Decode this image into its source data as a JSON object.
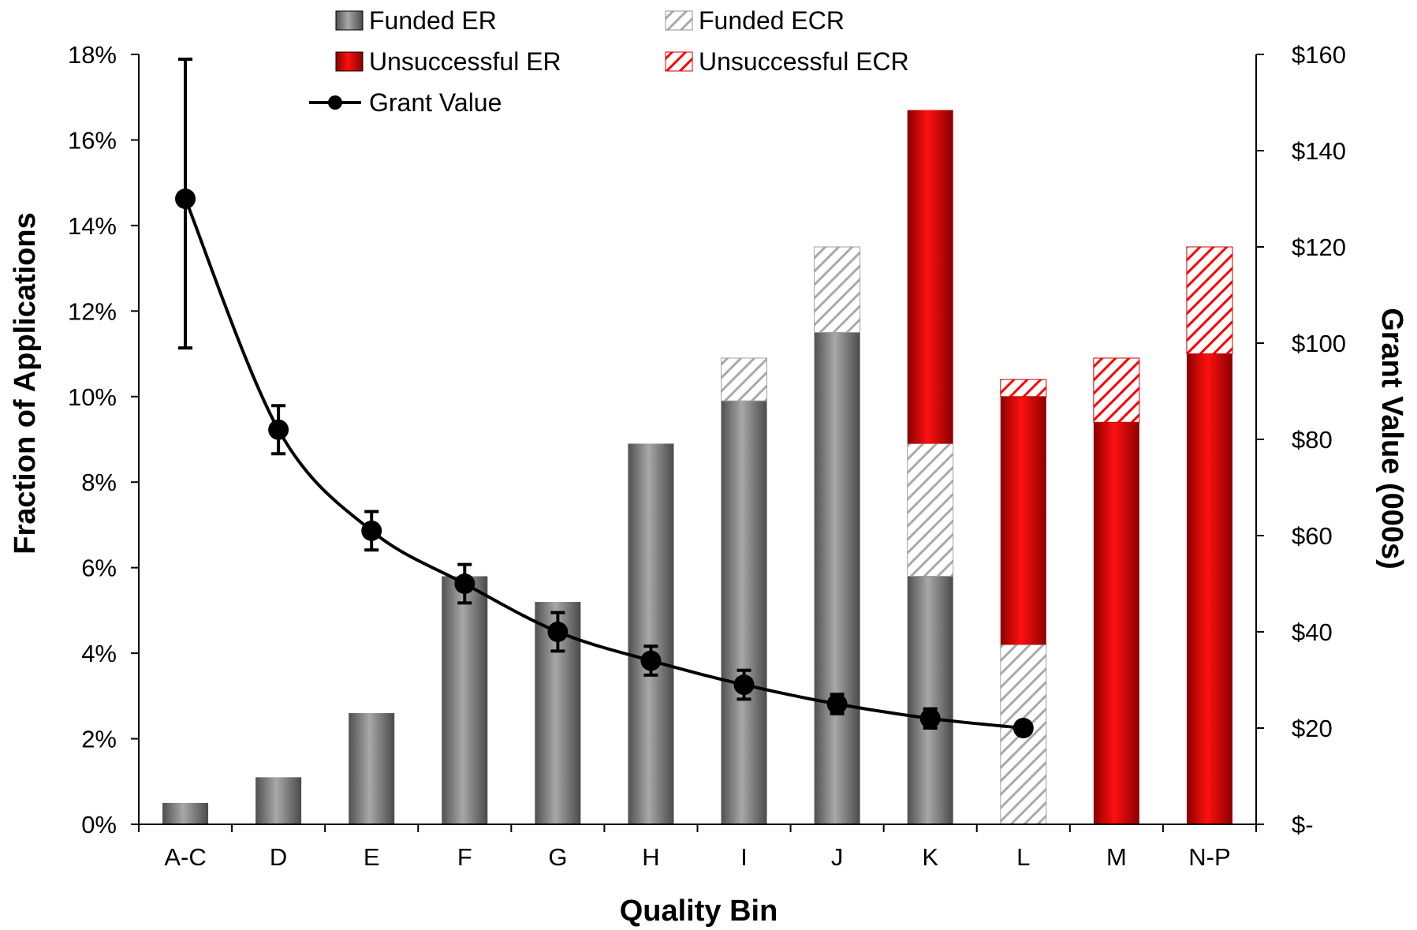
{
  "chart_data": {
    "type": "bar",
    "xlabel": "Quality Bin",
    "ylabel": "Fraction of Applications",
    "y2label": "Grant Value (000s)",
    "ylim": [
      0,
      18
    ],
    "y2lim": [
      0,
      160
    ],
    "yticks": [
      "0%",
      "2%",
      "4%",
      "6%",
      "8%",
      "10%",
      "12%",
      "14%",
      "16%",
      "18%"
    ],
    "y2ticks": [
      "$-",
      "$20",
      "$40",
      "$60",
      "$80",
      "$100",
      "$120",
      "$140",
      "$160"
    ],
    "categories": [
      "A-C",
      "D",
      "E",
      "F",
      "G",
      "H",
      "I",
      "J",
      "K",
      "L",
      "M",
      "N-P"
    ],
    "stacked_series": [
      {
        "name": "Funded ER",
        "color": "#808080",
        "pattern": "solid",
        "values": [
          0.5,
          1.1,
          2.6,
          5.8,
          5.2,
          8.9,
          9.9,
          11.5,
          5.8,
          0,
          0,
          0
        ]
      },
      {
        "name": "Funded ECR",
        "color": "#a0a0a0",
        "pattern": "hatch",
        "values": [
          0,
          0,
          0,
          0,
          0,
          0,
          1.0,
          2.0,
          3.1,
          4.2,
          0,
          0
        ]
      },
      {
        "name": "Unsuccessful ER",
        "color": "#ff0000",
        "pattern": "solid",
        "values": [
          0,
          0,
          0,
          0,
          0,
          0,
          0,
          0,
          7.8,
          5.8,
          9.4,
          11.0
        ]
      },
      {
        "name": "Unsuccessful ECR",
        "color": "#ff0000",
        "pattern": "hatch",
        "values": [
          0,
          0,
          0,
          0,
          0,
          0,
          0,
          0,
          0,
          0.4,
          1.5,
          2.5
        ]
      }
    ],
    "line_series": {
      "name": "Grant Value",
      "axis": "right",
      "color": "#000000",
      "values": [
        130,
        82,
        61,
        50,
        40,
        34,
        29,
        25,
        22,
        20
      ],
      "error_low": [
        99,
        77,
        57,
        46,
        36,
        31,
        26,
        23,
        20,
        19
      ],
      "error_high": [
        159,
        87,
        65,
        54,
        44,
        37,
        32,
        27,
        24,
        21
      ]
    },
    "legend": [
      {
        "label": "Funded ER",
        "kind": "solid-gray"
      },
      {
        "label": "Funded ECR",
        "kind": "hatch-gray"
      },
      {
        "label": "Unsuccessful ER",
        "kind": "solid-red"
      },
      {
        "label": "Unsuccessful ECR",
        "kind": "hatch-red"
      },
      {
        "label": "Grant Value",
        "kind": "line"
      }
    ],
    "legend_position": "top-left"
  }
}
